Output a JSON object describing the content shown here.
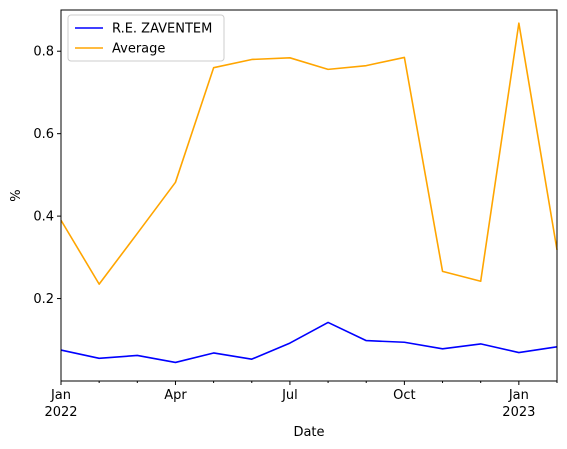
{
  "chart_data": {
    "type": "line",
    "xlabel": "Date",
    "ylabel": "%",
    "x": [
      "2022-01",
      "2022-02",
      "2022-03",
      "2022-04",
      "2022-05",
      "2022-06",
      "2022-07",
      "2022-08",
      "2022-09",
      "2022-10",
      "2022-11",
      "2022-12",
      "2023-01",
      "2023-02"
    ],
    "xlim": [
      "2022-01",
      "2023-02"
    ],
    "ylim": [
      0.0,
      0.9
    ],
    "yticks": [
      0.2,
      0.4,
      0.6,
      0.8
    ],
    "yticklabels": [
      "0.2",
      "0.4",
      "0.6",
      "0.8"
    ],
    "xticks": [
      {
        "date": "2022-01",
        "label": "Jan",
        "sublabel": "2022"
      },
      {
        "date": "2022-04",
        "label": "Apr",
        "sublabel": ""
      },
      {
        "date": "2022-07",
        "label": "Jul",
        "sublabel": ""
      },
      {
        "date": "2022-10",
        "label": "Oct",
        "sublabel": ""
      },
      {
        "date": "2023-01",
        "label": "Jan",
        "sublabel": "2023"
      }
    ],
    "grid": false,
    "legend_position": "upper-left",
    "series": [
      {
        "name": "R.E. ZAVENTEM",
        "color": "#0000ff",
        "values": [
          0.075,
          0.055,
          0.062,
          0.045,
          0.068,
          0.053,
          0.092,
          0.142,
          0.098,
          0.094,
          0.078,
          0.09,
          0.069,
          0.083
        ]
      },
      {
        "name": "Average",
        "color": "#ffa500",
        "values": [
          0.39,
          0.235,
          0.358,
          0.482,
          0.76,
          0.78,
          0.784,
          0.756,
          0.765,
          0.785,
          0.266,
          0.242,
          0.868,
          0.318
        ]
      }
    ]
  }
}
